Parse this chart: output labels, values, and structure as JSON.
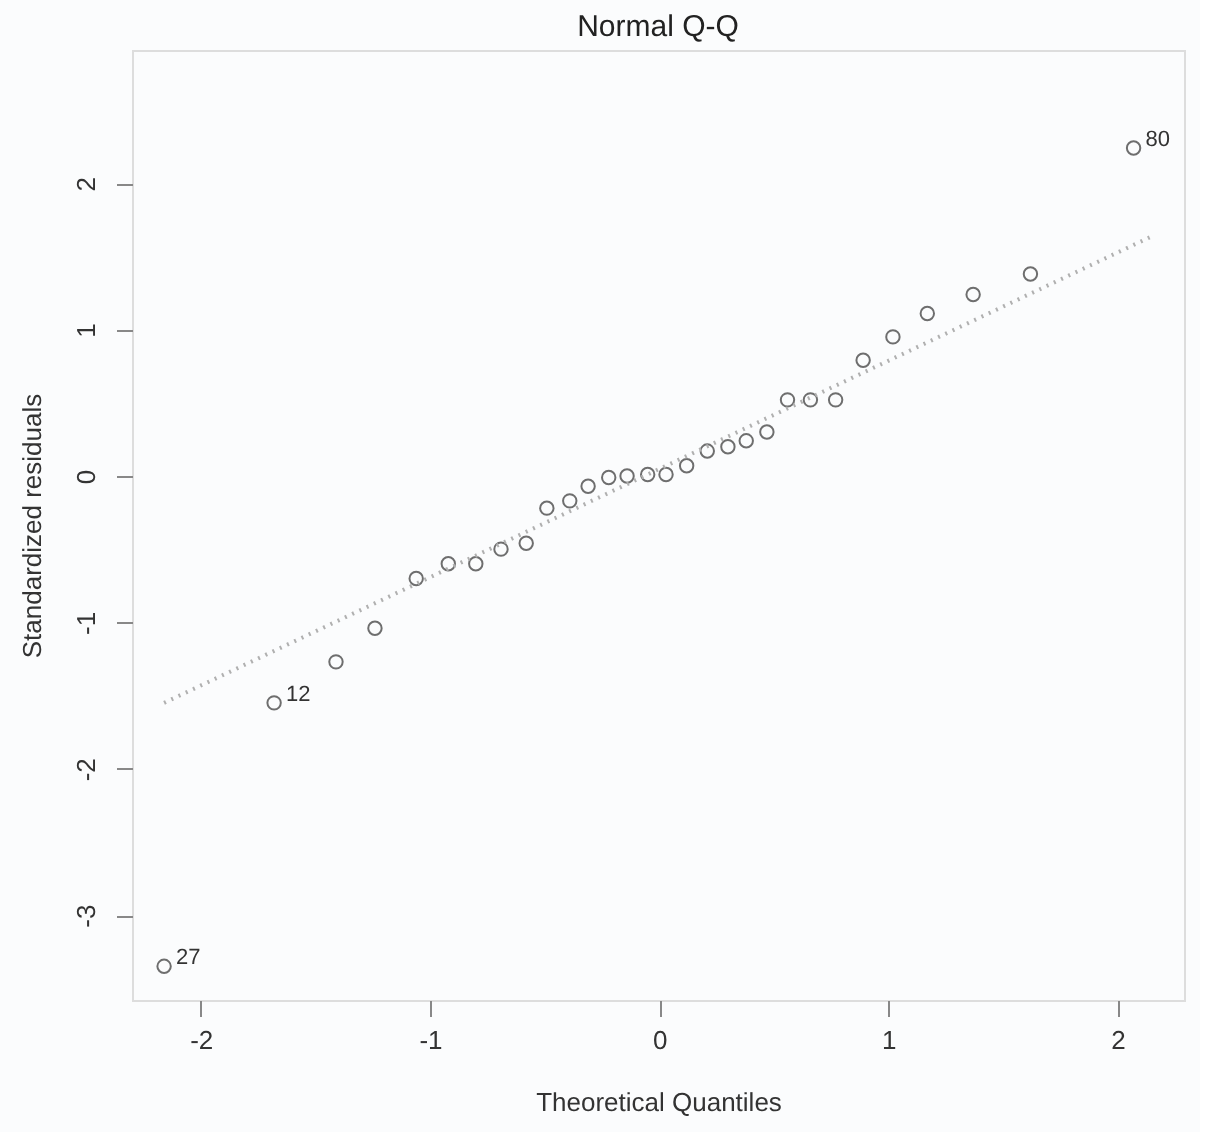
{
  "chart_data": {
    "type": "scatter",
    "title": "Normal Q-Q",
    "xlabel": "Theoretical Quantiles",
    "ylabel": "Standardized residuals",
    "xlim": [
      -2.3,
      2.29
    ],
    "ylim": [
      -3.58,
      2.91
    ],
    "xticks": [
      -2,
      -1,
      0,
      1,
      2
    ],
    "yticks": [
      -3,
      -2,
      -1,
      0,
      1,
      2
    ],
    "grid": false,
    "series": [
      {
        "marker": "circle",
        "color": "#333333",
        "x": [
          -2.16,
          -1.68,
          -1.41,
          -1.24,
          -1.06,
          -0.92,
          -0.8,
          -0.69,
          -0.58,
          -0.49,
          -0.39,
          -0.31,
          -0.22,
          -0.14,
          -0.05,
          0.03,
          0.12,
          0.21,
          0.3,
          0.38,
          0.47,
          0.56,
          0.66,
          0.77,
          0.89,
          1.02,
          1.17,
          1.37,
          1.62,
          2.07
        ],
        "values": [
          -3.35,
          -1.55,
          -1.27,
          -1.04,
          -0.7,
          -0.6,
          -0.6,
          -0.5,
          -0.46,
          -0.22,
          -0.17,
          -0.07,
          -0.01,
          0.0,
          0.01,
          0.01,
          0.07,
          0.17,
          0.2,
          0.24,
          0.3,
          0.52,
          0.52,
          0.52,
          0.79,
          0.95,
          1.11,
          1.24,
          1.38,
          2.24
        ]
      },
      {
        "type": "line",
        "color": "#b0b0b0",
        "line_style": "dotted",
        "x": [
          -2.16,
          2.14
        ],
        "values": [
          -1.55,
          1.63
        ]
      }
    ],
    "annotations": [
      {
        "text": "27",
        "x": -2.16,
        "y": -3.35
      },
      {
        "text": "12",
        "x": -1.68,
        "y": -1.55
      },
      {
        "text": "80",
        "x": 2.07,
        "y": 2.24
      }
    ]
  }
}
